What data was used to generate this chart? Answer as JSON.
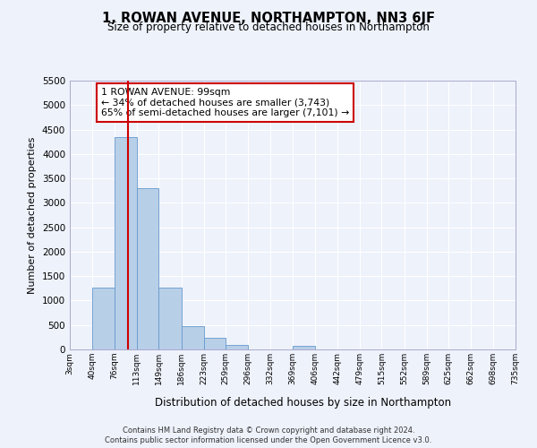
{
  "title": "1, ROWAN AVENUE, NORTHAMPTON, NN3 6JF",
  "subtitle": "Size of property relative to detached houses in Northampton",
  "xlabel": "Distribution of detached houses by size in Northampton",
  "ylabel": "Number of detached properties",
  "bar_color": "#b8cfe8",
  "bar_edge_color": "#6699cc",
  "background_color": "#eef2fb",
  "grid_color": "#ffffff",
  "bin_edges": [
    3,
    40,
    76,
    113,
    149,
    186,
    223,
    259,
    296,
    332,
    369,
    406,
    442,
    479,
    515,
    552,
    589,
    625,
    662,
    698,
    735
  ],
  "bin_labels": [
    "3sqm",
    "40sqm",
    "76sqm",
    "113sqm",
    "149sqm",
    "186sqm",
    "223sqm",
    "259sqm",
    "296sqm",
    "332sqm",
    "369sqm",
    "406sqm",
    "442sqm",
    "479sqm",
    "515sqm",
    "552sqm",
    "589sqm",
    "625sqm",
    "662sqm",
    "698sqm",
    "735sqm"
  ],
  "bar_heights": [
    0,
    1270,
    4350,
    3300,
    1270,
    480,
    230,
    90,
    0,
    0,
    65,
    0,
    0,
    0,
    0,
    0,
    0,
    0,
    0,
    0
  ],
  "property_line_x": 99,
  "vline_color": "#cc0000",
  "annotation_line1": "1 ROWAN AVENUE: 99sqm",
  "annotation_line2": "← 34% of detached houses are smaller (3,743)",
  "annotation_line3": "65% of semi-detached houses are larger (7,101) →",
  "ylim": [
    0,
    5500
  ],
  "yticks": [
    0,
    500,
    1000,
    1500,
    2000,
    2500,
    3000,
    3500,
    4000,
    4500,
    5000,
    5500
  ],
  "footnote1": "Contains HM Land Registry data © Crown copyright and database right 2024.",
  "footnote2": "Contains public sector information licensed under the Open Government Licence v3.0."
}
